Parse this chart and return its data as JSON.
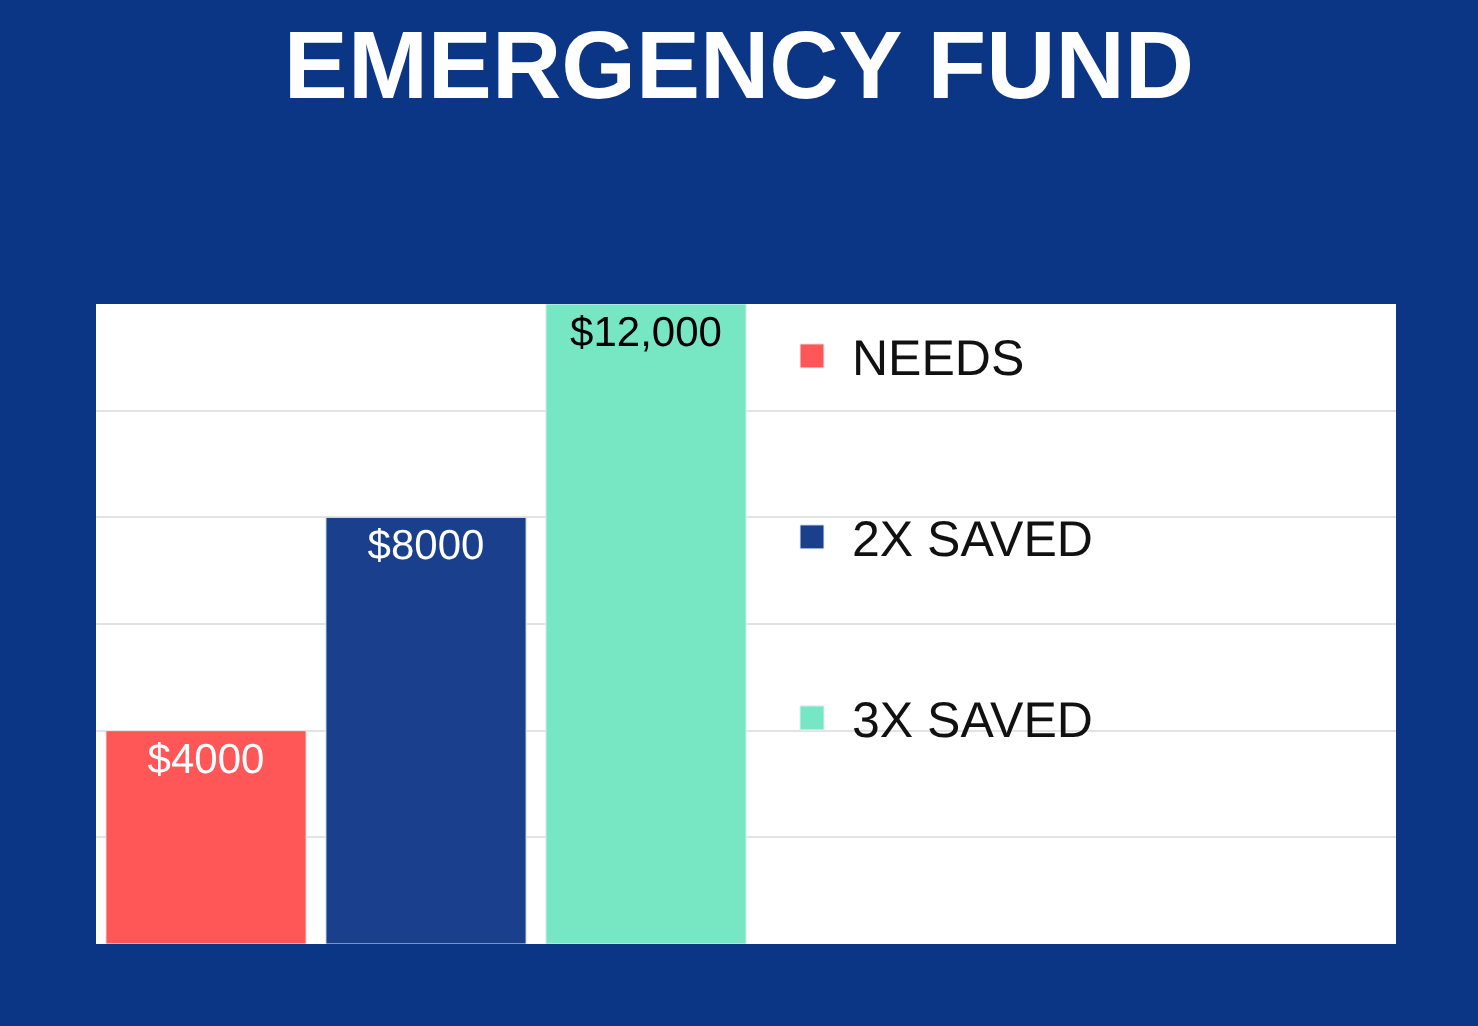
{
  "chart_data": {
    "type": "bar",
    "title": "EMERGENCY FUND",
    "categories": [
      null
    ],
    "series": [
      {
        "name": "NEEDS",
        "color": "#ff5757",
        "values": [
          4000
        ],
        "value_labels": [
          "$4000"
        ]
      },
      {
        "name": "2X SAVED",
        "color": "#1a3f8c",
        "values": [
          8000
        ],
        "value_labels": [
          "$8000"
        ]
      },
      {
        "name": "3X SAVED",
        "color": "#77e6c2",
        "values": [
          12000
        ],
        "value_labels": [
          "$12,000"
        ]
      }
    ],
    "ylim": [
      0,
      12000
    ],
    "yticks": [
      {
        "value": 0,
        "label": null
      },
      {
        "value": 2000,
        "label": null
      },
      {
        "value": 4000,
        "label": null
      },
      {
        "value": 6000,
        "label": null
      },
      {
        "value": 8000,
        "label": null
      },
      {
        "value": 10000,
        "label": null
      },
      {
        "value": 12000,
        "label": null
      }
    ],
    "grid": "y",
    "legend": "right"
  }
}
